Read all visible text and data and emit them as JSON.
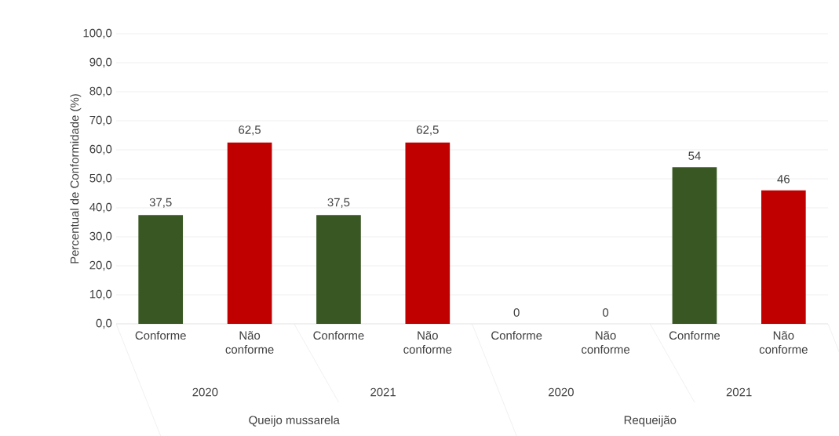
{
  "chart_data": {
    "type": "bar",
    "ylabel": "Percentual de Conformidade (%)",
    "categories": [
      "Conforme",
      "Não conforme",
      "Conforme",
      "Não conforme",
      "Conforme",
      "Não conforme",
      "Conforme",
      "Não conforme"
    ],
    "values": [
      37.5,
      62.5,
      37.5,
      62.5,
      0,
      0,
      54,
      46
    ],
    "value_labels": [
      "37,5",
      "62,5",
      "37,5",
      "62,5",
      "0",
      "0",
      "54",
      "46"
    ],
    "colors": [
      "#385723",
      "#c00000",
      "#385723",
      "#c00000",
      "#385723",
      "#c00000",
      "#385723",
      "#c00000"
    ],
    "ylim": [
      0,
      100
    ],
    "yticks": [
      {
        "value": 0,
        "label": "0,0"
      },
      {
        "value": 10,
        "label": "10,0"
      },
      {
        "value": 20,
        "label": "20,0"
      },
      {
        "value": 30,
        "label": "30,0"
      },
      {
        "value": 40,
        "label": "40,0"
      },
      {
        "value": 50,
        "label": "50,0"
      },
      {
        "value": 60,
        "label": "60,0"
      },
      {
        "value": 70,
        "label": "70,0"
      },
      {
        "value": 80,
        "label": "80,0"
      },
      {
        "value": 90,
        "label": "90,0"
      },
      {
        "value": 100,
        "label": "100,0"
      }
    ],
    "grid": "y",
    "annotations": [
      "2020",
      "2021",
      "2020",
      "2021",
      "Queijo mussarela",
      "Requeijão"
    ]
  }
}
